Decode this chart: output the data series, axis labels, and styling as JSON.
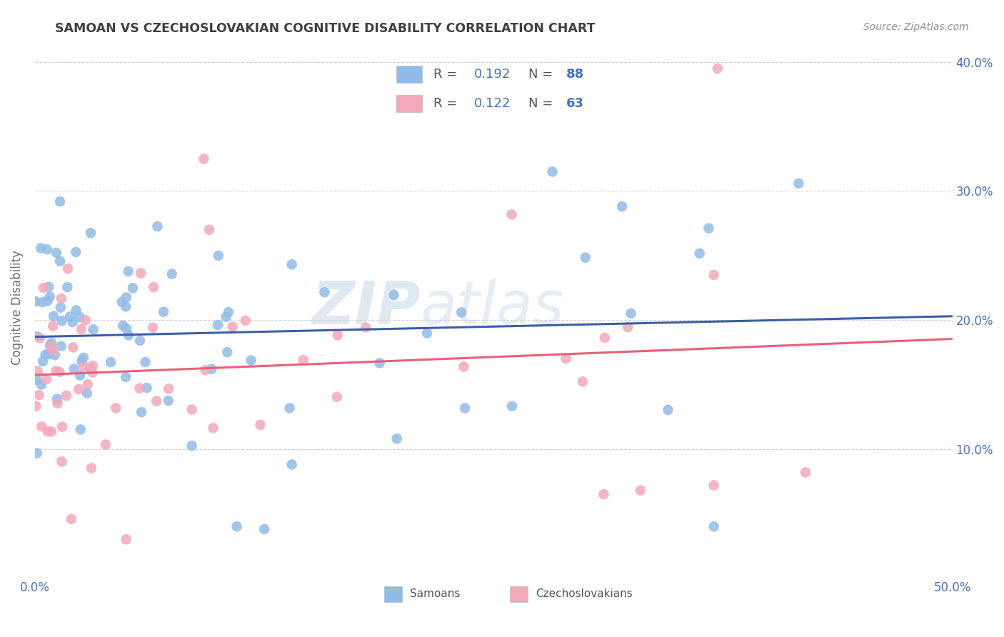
{
  "title": "SAMOAN VS CZECHOSLOVAKIAN COGNITIVE DISABILITY CORRELATION CHART",
  "source": "Source: ZipAtlas.com",
  "ylabel": "Cognitive Disability",
  "xlim": [
    0.0,
    0.5
  ],
  "ylim": [
    0.0,
    0.42
  ],
  "yticks": [
    0.1,
    0.2,
    0.3,
    0.4
  ],
  "ytick_labels": [
    "10.0%",
    "20.0%",
    "30.0%",
    "40.0%"
  ],
  "xticks": [
    0.0,
    0.1,
    0.2,
    0.3,
    0.4,
    0.5
  ],
  "xtick_labels": [
    "0.0%",
    "",
    "",
    "",
    "",
    "50.0%"
  ],
  "samoan_R": 0.192,
  "samoan_N": 88,
  "czech_R": 0.122,
  "czech_N": 63,
  "samoan_color": "#92bce8",
  "czech_color": "#f4a8b8",
  "samoan_line_color": "#3a5fa8",
  "czech_line_color": "#e8607a",
  "watermark_zip": "ZIP",
  "watermark_atlas": "atlas",
  "legend_labels": [
    "Samoans",
    "Czechoslovakians"
  ],
  "background_color": "#ffffff",
  "grid_color": "#cccccc",
  "title_color": "#404040",
  "tick_color": "#4472c4",
  "legend_text_color": "#4472c4",
  "ylabel_color": "#707070"
}
